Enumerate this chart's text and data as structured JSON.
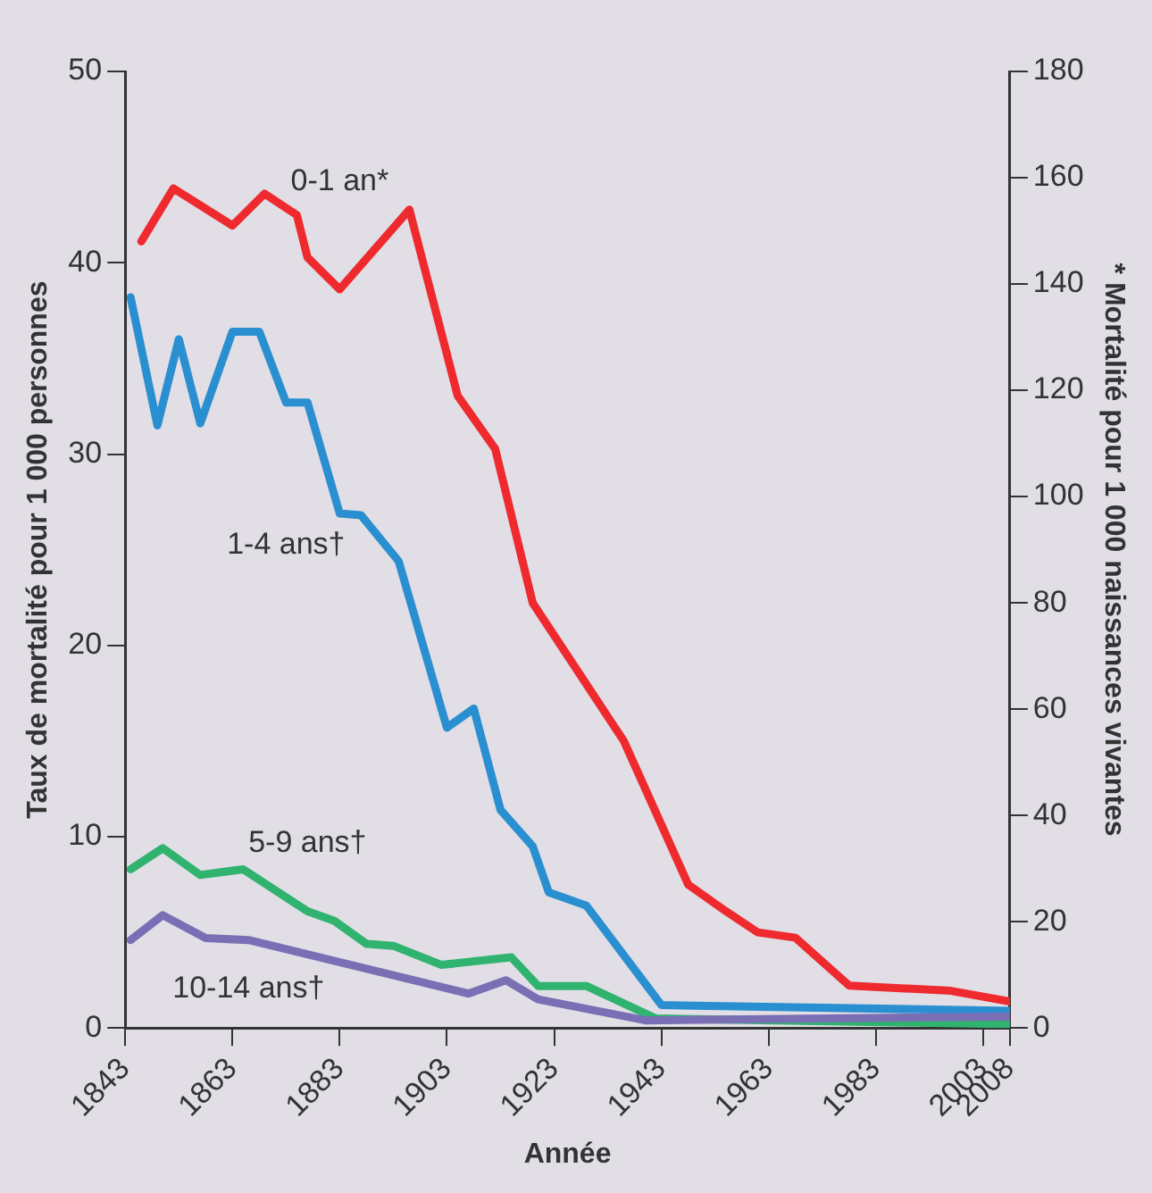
{
  "chart_data": {
    "type": "line",
    "xlabel": "Année",
    "ylabel": "Taux de mortalité pour 1 000 personnes",
    "y2label": "* Mortalité pour 1 000 naissances vivantes",
    "xlim": [
      1843,
      2008
    ],
    "xticks": [
      1843,
      1863,
      1883,
      1903,
      1923,
      1943,
      1963,
      1983,
      2003,
      2008
    ],
    "ylim": [
      0,
      50
    ],
    "yticks": [
      0,
      10,
      20,
      30,
      40,
      50
    ],
    "y2lim": [
      0,
      180
    ],
    "y2ticks": [
      0,
      20,
      40,
      60,
      80,
      100,
      120,
      140,
      160,
      180
    ],
    "grid": false,
    "legend": false,
    "marker": "none",
    "line_style": "solid",
    "series": [
      {
        "name": "0-1 an*",
        "color": "#ee2a2e",
        "axis": "y2",
        "x": [
          1846,
          1852,
          1863,
          1869,
          1875,
          1877,
          1883,
          1896,
          1905,
          1912,
          1919,
          1936,
          1948,
          1955,
          1961,
          1968,
          1978,
          1997,
          2008
        ],
        "values": [
          148,
          158,
          151,
          157,
          153,
          145,
          139,
          154,
          119,
          109,
          80,
          54,
          27,
          22,
          18,
          17,
          8,
          7,
          5
        ]
      },
      {
        "name": "1-4 ans†",
        "color": "#2a8fd0",
        "x": [
          1844,
          1849,
          1853,
          1857,
          1863,
          1868,
          1873,
          1877,
          1883,
          1887,
          1894,
          1903,
          1908,
          1913,
          1919,
          1922,
          1929,
          1943,
          2008
        ],
        "values": [
          38.2,
          31.5,
          36,
          31.6,
          36.4,
          36.4,
          32.7,
          32.7,
          26.9,
          26.8,
          24.4,
          15.7,
          16.7,
          11.4,
          9.5,
          7.1,
          6.4,
          1.2,
          0.9
        ]
      },
      {
        "name": "5-9 ans†",
        "color": "#2fb36e",
        "x": [
          1844,
          1850,
          1857,
          1865,
          1877,
          1882,
          1888,
          1893,
          1902,
          1915,
          1920,
          1929,
          1942,
          2008
        ],
        "values": [
          8.3,
          9.4,
          8,
          8.3,
          6.1,
          5.6,
          4.4,
          4.3,
          3.3,
          3.7,
          2.2,
          2.2,
          0.5,
          0.2
        ]
      },
      {
        "name": "10-14 ans†",
        "color": "#7a6fb5",
        "x": [
          1844,
          1850,
          1858,
          1866,
          1907,
          1914,
          1920,
          1940,
          2008
        ],
        "values": [
          4.6,
          5.9,
          4.7,
          4.6,
          1.8,
          2.5,
          1.5,
          0.4,
          0.6
        ]
      }
    ]
  }
}
